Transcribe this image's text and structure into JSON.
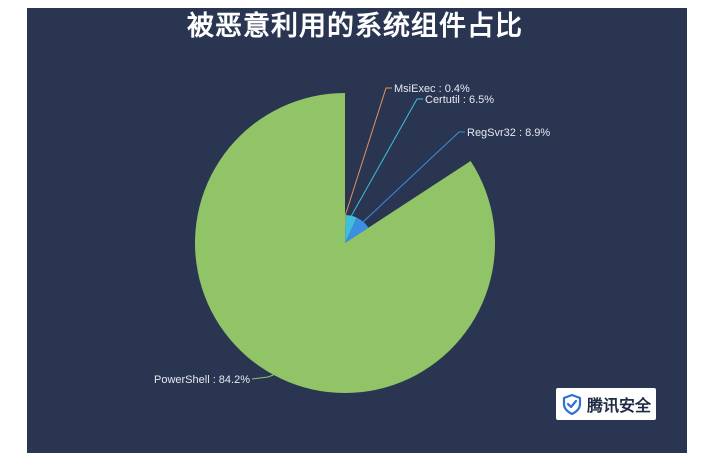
{
  "title": "被恶意利用的系统组件占比",
  "brand": {
    "name": "腾讯安全",
    "logo_icon": "shield-check-icon"
  },
  "chart_data": {
    "type": "pie",
    "categories": [
      "PowerShell",
      "RegSvr32",
      "Certutil",
      "MsiExec"
    ],
    "values": [
      84.2,
      8.9,
      6.5,
      0.4
    ],
    "labels": [
      "PowerShell : 84.2%",
      "RegSvr32 : 8.9%",
      "Certutil : 6.5%",
      "MsiExec : 0.4%"
    ],
    "colors": [
      "#91c466",
      "#3a8fe0",
      "#3fbfd8",
      "#e6925a"
    ],
    "title": "被恶意利用的系统组件占比",
    "legend": "none",
    "unit": "%"
  }
}
